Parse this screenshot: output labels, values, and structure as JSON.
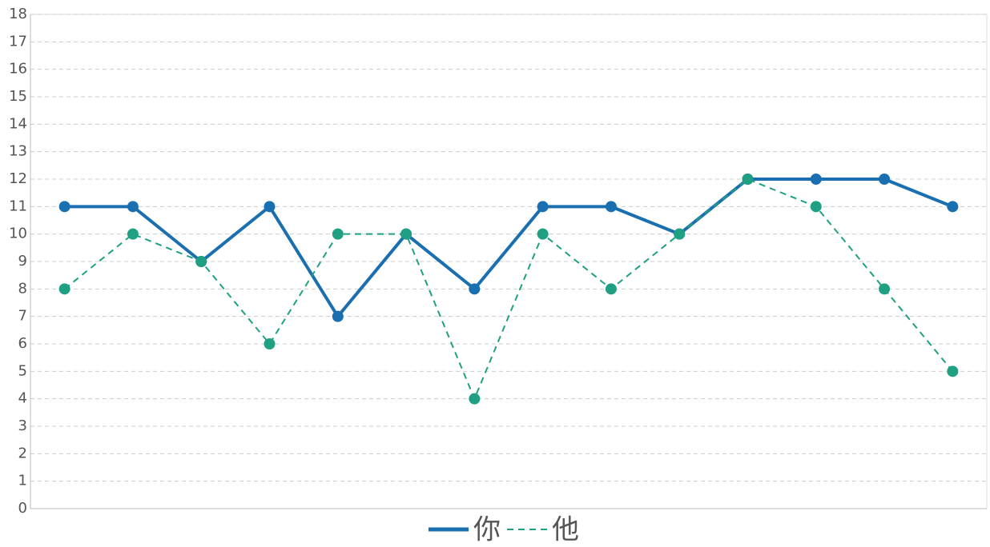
{
  "chart_data": {
    "type": "line",
    "categories": [
      null,
      null,
      null,
      null,
      null,
      null,
      null,
      null,
      null,
      null,
      null,
      null,
      null,
      null
    ],
    "series": [
      {
        "name": "你",
        "color": "#1a6fb0",
        "style": "solid",
        "values": [
          11,
          11,
          9,
          11,
          7,
          10,
          8,
          11,
          11,
          10,
          12,
          12,
          12,
          11
        ]
      },
      {
        "name": "他",
        "color": "#1fa083",
        "style": "dashed",
        "values": [
          8,
          10,
          9,
          6,
          10,
          10,
          4,
          10,
          8,
          10,
          12,
          11,
          8,
          5
        ]
      }
    ],
    "ylim": [
      0,
      18
    ],
    "yticks": [
      0,
      1,
      2,
      3,
      4,
      5,
      6,
      7,
      8,
      9,
      10,
      11,
      12,
      13,
      14,
      15,
      16,
      17,
      18
    ],
    "grid": true,
    "legend": "bottom"
  }
}
